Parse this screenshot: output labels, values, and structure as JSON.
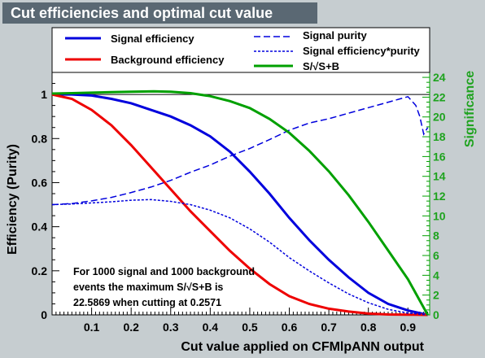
{
  "title": "Cut efficiencies and optimal cut value",
  "colors": {
    "signal": "#0000dd",
    "background": "#ee0000",
    "significance": "#00a000",
    "purity": "#0000dd",
    "frame_bg": "#c6cdd0",
    "plot_bg": "#ffffff"
  },
  "legend": {
    "items": [
      {
        "label": "Signal efficiency",
        "style": "solid",
        "color": "#0000dd"
      },
      {
        "label": "Background efficiency",
        "style": "solid",
        "color": "#ee0000"
      },
      {
        "label": "Signal purity",
        "style": "dashed",
        "color": "#0000dd"
      },
      {
        "label": "Signal efficiency*purity",
        "style": "dotted",
        "color": "#0000dd"
      },
      {
        "label": "S/√S+B",
        "style": "solid",
        "color": "#00a000"
      }
    ]
  },
  "annotation": {
    "lines": [
      "For 1000 signal and 1000 background",
      "events the maximum S/√S+B is",
      "22.5869 when cutting at 0.2571"
    ]
  },
  "chart_data": {
    "type": "line",
    "title": "Cut efficiencies and optimal cut value",
    "xlabel": "Cut value applied on CFMlpANN output",
    "ylabel": "Efficiency (Purity)",
    "y2label": "Significance",
    "xlim": [
      0.0,
      0.955
    ],
    "ylim": [
      0,
      1.1
    ],
    "y2lim": [
      0,
      24.5
    ],
    "x_ticks": [
      "0.1",
      "0.2",
      "0.3",
      "0.4",
      "0.5",
      "0.6",
      "0.7",
      "0.8",
      "0.9"
    ],
    "y_ticks": [
      "0",
      "0.2",
      "0.4",
      "0.6",
      "0.8",
      "1"
    ],
    "y2_ticks": [
      "0",
      "2",
      "4",
      "6",
      "8",
      "10",
      "12",
      "14",
      "16",
      "18",
      "20",
      "22",
      "24"
    ],
    "grid": false,
    "legend_position": "top",
    "series": [
      {
        "name": "Signal efficiency",
        "axis": "left",
        "x": [
          0.0,
          0.05,
          0.1,
          0.15,
          0.2,
          0.25,
          0.3,
          0.35,
          0.4,
          0.45,
          0.5,
          0.55,
          0.6,
          0.65,
          0.7,
          0.75,
          0.8,
          0.85,
          0.9,
          0.93,
          0.95
        ],
        "y": [
          1.0,
          1.0,
          0.995,
          0.98,
          0.96,
          0.93,
          0.9,
          0.86,
          0.81,
          0.74,
          0.65,
          0.55,
          0.44,
          0.34,
          0.25,
          0.17,
          0.1,
          0.05,
          0.02,
          0.008,
          0.0
        ]
      },
      {
        "name": "Background efficiency",
        "axis": "left",
        "x": [
          0.0,
          0.05,
          0.1,
          0.15,
          0.2,
          0.25,
          0.3,
          0.35,
          0.4,
          0.45,
          0.5,
          0.55,
          0.6,
          0.65,
          0.7,
          0.75,
          0.8,
          0.85,
          0.9,
          0.95
        ],
        "y": [
          1.0,
          0.98,
          0.93,
          0.86,
          0.77,
          0.67,
          0.57,
          0.47,
          0.38,
          0.29,
          0.21,
          0.14,
          0.085,
          0.05,
          0.028,
          0.015,
          0.006,
          0.002,
          0.001,
          0.0
        ]
      },
      {
        "name": "Signal purity",
        "axis": "left",
        "x": [
          0.0,
          0.05,
          0.1,
          0.15,
          0.2,
          0.25,
          0.3,
          0.35,
          0.4,
          0.45,
          0.5,
          0.55,
          0.6,
          0.65,
          0.7,
          0.75,
          0.8,
          0.85,
          0.88,
          0.9,
          0.92,
          0.93,
          0.94,
          0.95
        ],
        "y": [
          0.5,
          0.505,
          0.517,
          0.533,
          0.555,
          0.58,
          0.61,
          0.647,
          0.68,
          0.72,
          0.755,
          0.795,
          0.838,
          0.87,
          0.89,
          0.915,
          0.94,
          0.965,
          0.98,
          0.99,
          0.95,
          0.9,
          0.82,
          0.85
        ]
      },
      {
        "name": "Signal efficiency*purity",
        "axis": "left",
        "x": [
          0.0,
          0.05,
          0.1,
          0.15,
          0.2,
          0.25,
          0.3,
          0.35,
          0.4,
          0.45,
          0.5,
          0.55,
          0.6,
          0.65,
          0.7,
          0.75,
          0.8,
          0.85,
          0.9,
          0.95
        ],
        "y": [
          0.5,
          0.503,
          0.508,
          0.513,
          0.52,
          0.523,
          0.515,
          0.5,
          0.475,
          0.44,
          0.39,
          0.33,
          0.26,
          0.2,
          0.145,
          0.095,
          0.055,
          0.025,
          0.008,
          0.0
        ]
      },
      {
        "name": "S/√S+B",
        "axis": "right",
        "x": [
          0.0,
          0.05,
          0.1,
          0.15,
          0.2,
          0.2571,
          0.3,
          0.35,
          0.4,
          0.45,
          0.5,
          0.55,
          0.6,
          0.65,
          0.7,
          0.75,
          0.8,
          0.85,
          0.9,
          0.95
        ],
        "y": [
          22.36,
          22.4,
          22.45,
          22.5,
          22.55,
          22.59,
          22.55,
          22.4,
          22.1,
          21.6,
          20.9,
          19.8,
          18.4,
          16.6,
          14.5,
          12.1,
          9.4,
          6.5,
          3.6,
          0.0
        ]
      }
    ]
  }
}
